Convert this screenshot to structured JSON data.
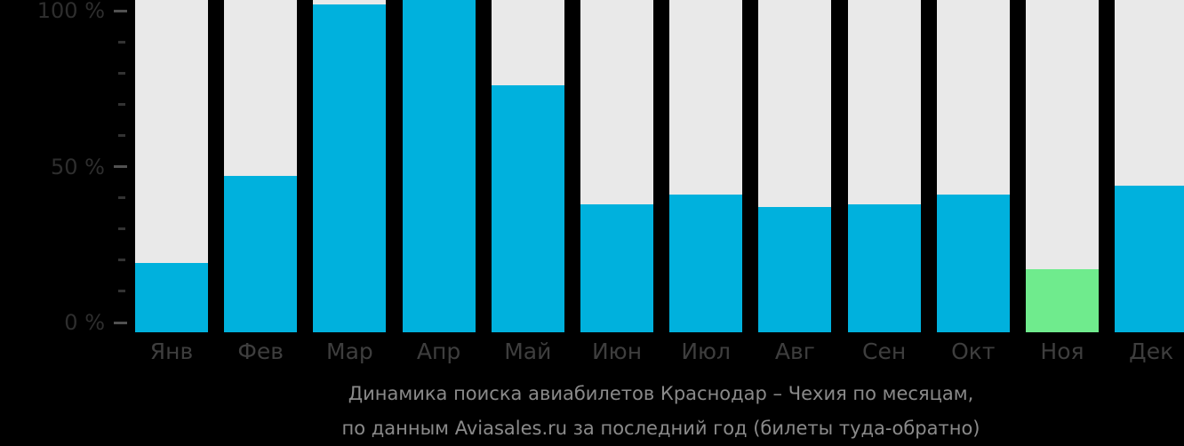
{
  "colors": {
    "background": "#000000",
    "bar_default": "#00b1dd",
    "bar_highlight": "#6feb8d",
    "bar_track": "#e9e9e9",
    "y_axis_label": "#2e2e2e",
    "x_axis_label": "#3e3e3e",
    "title_text": "#8a8a8a",
    "tick_major": "#515151",
    "tick_minor": "#333333"
  },
  "title": {
    "line1": "Динамика поиска авиабилетов Краснодар – Чехия по месяцам,",
    "line2": "по данным Aviasales.ru за последний год (билеты туда-обратно)"
  },
  "y_axis": {
    "tick_labels": [
      {
        "text": "100 %",
        "value": 100
      },
      {
        "text": "50 %",
        "value": 50
      },
      {
        "text": "0 %",
        "value": 0
      }
    ]
  },
  "chart_data": {
    "type": "bar",
    "title": "Динамика поиска авиабилетов Краснодар – Чехия по месяцам, по данным Aviasales.ru за последний год (билеты туда-обратно)",
    "categories": [
      "Янв",
      "Фев",
      "Мар",
      "Апр",
      "Май",
      "Июн",
      "Июл",
      "Авг",
      "Сен",
      "Окт",
      "Ноя",
      "Дек"
    ],
    "category_keys": [
      "jan",
      "feb",
      "mar",
      "apr",
      "may",
      "jun",
      "jul",
      "aug",
      "sep",
      "oct",
      "nov",
      "dec"
    ],
    "values": [
      19,
      47,
      102,
      104,
      76,
      38,
      41,
      37,
      38,
      41,
      17,
      44
    ],
    "unit": "%",
    "highlight": {
      "category": "Ноя",
      "index": 10,
      "color": "#6feb8d"
    },
    "default_bar_color": "#00b1dd",
    "y_ticks_major": [
      0,
      50,
      100
    ],
    "y_ticks_minor": [
      10,
      20,
      30,
      40,
      60,
      70,
      80,
      90
    ],
    "ylim": [
      0,
      100
    ],
    "xlabel": "",
    "ylabel": "",
    "grid": false,
    "legend": false,
    "background_tracks_full_height": true
  }
}
